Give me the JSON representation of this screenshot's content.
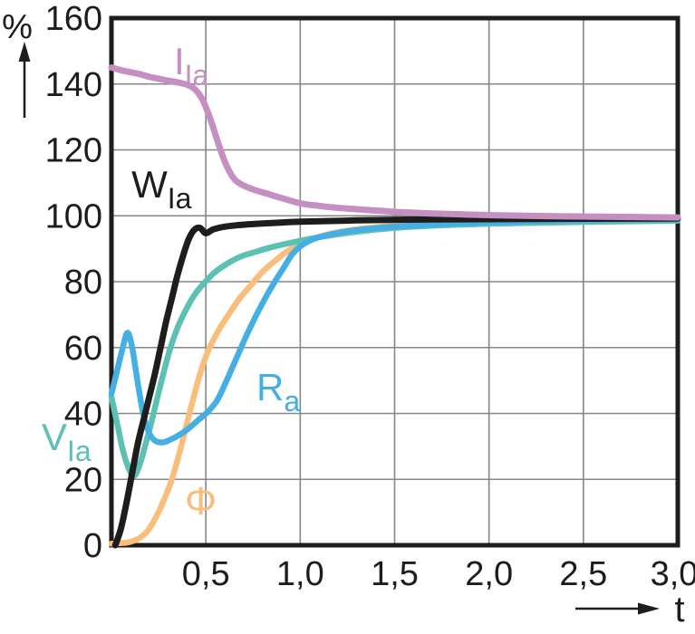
{
  "figure": {
    "y_axis_unit": "%",
    "x_axis_label": "t"
  },
  "chart_data": {
    "type": "line",
    "title": "",
    "xlabel": "t",
    "ylabel": "%",
    "xlim": [
      0,
      3
    ],
    "ylim": [
      0,
      160
    ],
    "grid": true,
    "grid_color": "#868686",
    "border_color": "#1d1d1b",
    "background": "#ffffff",
    "x_ticks": [
      {
        "value": 0.5,
        "label": "0,5"
      },
      {
        "value": 1.0,
        "label": "1,0"
      },
      {
        "value": 1.5,
        "label": "1,5"
      },
      {
        "value": 2.0,
        "label": "2,0"
      },
      {
        "value": 2.5,
        "label": "2,5"
      },
      {
        "value": 3.0,
        "label": "3,0"
      }
    ],
    "y_ticks": [
      {
        "value": 0,
        "label": "0"
      },
      {
        "value": 20,
        "label": "20"
      },
      {
        "value": 40,
        "label": "40"
      },
      {
        "value": 60,
        "label": "60"
      },
      {
        "value": 80,
        "label": "80"
      },
      {
        "value": 100,
        "label": "100"
      },
      {
        "value": 120,
        "label": "120"
      },
      {
        "value": 140,
        "label": "140"
      },
      {
        "value": 160,
        "label": "160"
      }
    ],
    "series": [
      {
        "id": "phi",
        "label_main": "Φ",
        "label_sub": "",
        "color": "#f9be7b",
        "stroke_width": 6.5,
        "label_pos": {
          "t": 0.389,
          "p": 9.3
        },
        "points": [
          [
            0,
            0.5
          ],
          [
            0.08,
            0.8
          ],
          [
            0.12,
            1.4
          ],
          [
            0.16,
            2.6
          ],
          [
            0.2,
            5
          ],
          [
            0.24,
            9
          ],
          [
            0.28,
            14
          ],
          [
            0.32,
            20
          ],
          [
            0.36,
            28
          ],
          [
            0.4,
            37
          ],
          [
            0.44,
            46
          ],
          [
            0.48,
            54
          ],
          [
            0.52,
            60
          ],
          [
            0.57,
            65.5
          ],
          [
            0.62,
            70
          ],
          [
            0.68,
            75
          ],
          [
            0.74,
            79
          ],
          [
            0.8,
            83
          ],
          [
            0.87,
            86.5
          ],
          [
            0.94,
            89.5
          ],
          [
            1.02,
            92
          ],
          [
            1.12,
            94
          ],
          [
            1.25,
            95.5
          ],
          [
            1.45,
            96.8
          ],
          [
            1.7,
            97.6
          ],
          [
            2,
            98.1
          ],
          [
            2.5,
            98.5
          ],
          [
            3,
            98.8
          ]
        ]
      },
      {
        "id": "V_Ia",
        "label_main": "V",
        "label_sub": "Ia",
        "color": "#5cc1b4",
        "stroke_width": 6.5,
        "label_pos": {
          "t": -0.37,
          "p": 28.9
        },
        "points": [
          [
            0,
            45
          ],
          [
            0.03,
            37
          ],
          [
            0.06,
            29
          ],
          [
            0.09,
            23.5
          ],
          [
            0.12,
            21
          ],
          [
            0.15,
            24.5
          ],
          [
            0.18,
            30.5
          ],
          [
            0.21,
            37
          ],
          [
            0.24,
            44
          ],
          [
            0.27,
            51
          ],
          [
            0.31,
            59.5
          ],
          [
            0.35,
            66
          ],
          [
            0.39,
            71
          ],
          [
            0.44,
            76
          ],
          [
            0.49,
            79.5
          ],
          [
            0.54,
            82.5
          ],
          [
            0.6,
            85
          ],
          [
            0.68,
            87.5
          ],
          [
            0.76,
            89
          ],
          [
            0.85,
            90.5
          ],
          [
            0.95,
            91.8
          ],
          [
            1.05,
            93
          ],
          [
            1.2,
            94.4
          ],
          [
            1.4,
            95.8
          ],
          [
            1.6,
            96.7
          ],
          [
            1.9,
            97.4
          ],
          [
            2.2,
            97.8
          ],
          [
            2.6,
            98.2
          ],
          [
            3,
            98.5
          ]
        ]
      },
      {
        "id": "R_a",
        "label_main": "R",
        "label_sub": "a",
        "color": "#45aee2",
        "stroke_width": 6.5,
        "label_pos": {
          "t": 0.768,
          "p": 44.0
        },
        "points": [
          [
            0,
            46
          ],
          [
            0.03,
            53
          ],
          [
            0.06,
            60
          ],
          [
            0.085,
            64.5
          ],
          [
            0.11,
            60
          ],
          [
            0.14,
            49
          ],
          [
            0.17,
            39.5
          ],
          [
            0.2,
            34
          ],
          [
            0.23,
            31.8
          ],
          [
            0.27,
            31.2
          ],
          [
            0.31,
            32
          ],
          [
            0.36,
            33.5
          ],
          [
            0.41,
            35.5
          ],
          [
            0.46,
            38
          ],
          [
            0.51,
            40.5
          ],
          [
            0.56,
            44
          ],
          [
            0.61,
            50
          ],
          [
            0.66,
            56.5
          ],
          [
            0.71,
            63
          ],
          [
            0.76,
            69
          ],
          [
            0.81,
            74.5
          ],
          [
            0.86,
            79.5
          ],
          [
            0.91,
            84
          ],
          [
            0.96,
            88.5
          ],
          [
            1.02,
            91.5
          ],
          [
            1.1,
            93.5
          ],
          [
            1.25,
            95.3
          ],
          [
            1.45,
            96.5
          ],
          [
            1.7,
            97.4
          ],
          [
            2,
            98.1
          ],
          [
            2.5,
            98.7
          ],
          [
            3,
            99
          ]
        ]
      },
      {
        "id": "W_Ia",
        "label_main": "W",
        "label_sub": "Ia",
        "color": "#1d1d1b",
        "stroke_width": 7,
        "label_pos": {
          "t": 0.106,
          "p": 105.6
        },
        "points": [
          [
            0.02,
            0
          ],
          [
            0.05,
            5
          ],
          [
            0.08,
            13
          ],
          [
            0.11,
            22
          ],
          [
            0.14,
            31
          ],
          [
            0.17,
            38
          ],
          [
            0.2,
            45
          ],
          [
            0.23,
            52
          ],
          [
            0.26,
            60
          ],
          [
            0.29,
            68
          ],
          [
            0.32,
            75
          ],
          [
            0.35,
            82
          ],
          [
            0.38,
            88
          ],
          [
            0.41,
            93
          ],
          [
            0.44,
            95.8
          ],
          [
            0.47,
            96.3
          ],
          [
            0.5,
            94.7
          ],
          [
            0.54,
            95.9
          ],
          [
            0.6,
            96.7
          ],
          [
            0.7,
            97.3
          ],
          [
            0.85,
            97.8
          ],
          [
            1,
            98.2
          ],
          [
            1.3,
            98.6
          ],
          [
            1.7,
            98.9
          ],
          [
            2.1,
            99
          ],
          [
            2.5,
            99.1
          ],
          [
            3,
            99.2
          ]
        ]
      },
      {
        "id": "I_Ia",
        "label_main": "I",
        "label_sub": "Ia",
        "color": "#c58fc2",
        "stroke_width": 7,
        "label_pos": {
          "t": 0.331,
          "p": 143.0
        },
        "points": [
          [
            0,
            145
          ],
          [
            0.05,
            144.2
          ],
          [
            0.1,
            143.6
          ],
          [
            0.15,
            143
          ],
          [
            0.2,
            142.2
          ],
          [
            0.25,
            141.6
          ],
          [
            0.3,
            141
          ],
          [
            0.35,
            140.5
          ],
          [
            0.4,
            139.8
          ],
          [
            0.44,
            138.5
          ],
          [
            0.48,
            135.5
          ],
          [
            0.52,
            130
          ],
          [
            0.56,
            123
          ],
          [
            0.6,
            116.5
          ],
          [
            0.64,
            112
          ],
          [
            0.68,
            109.8
          ],
          [
            0.75,
            108
          ],
          [
            0.82,
            106.8
          ],
          [
            0.9,
            105.4
          ],
          [
            1,
            103.8
          ],
          [
            1.1,
            103
          ],
          [
            1.2,
            102.4
          ],
          [
            1.35,
            101.8
          ],
          [
            1.5,
            101.2
          ],
          [
            1.7,
            100.7
          ],
          [
            2,
            100.2
          ],
          [
            2.3,
            99.9
          ],
          [
            2.6,
            99.7
          ],
          [
            3,
            99.5
          ]
        ]
      }
    ]
  }
}
